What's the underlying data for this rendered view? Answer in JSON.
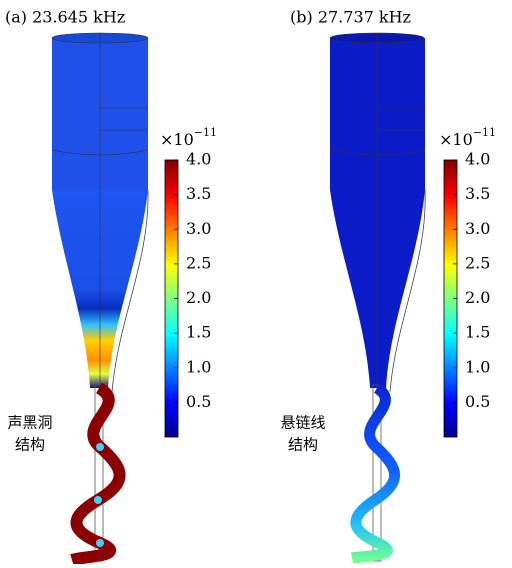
{
  "panels": [
    {
      "label": "(a) 23.645 kHz",
      "annotation": [
        "声黑洞",
        "结构"
      ],
      "colorbar": {
        "scale_base": "×10",
        "scale_exponent": "−11",
        "range": [
          0,
          4
        ],
        "ticks": [
          {
            "value": 4,
            "label": "4.0"
          },
          {
            "value": 3.5,
            "label": "3.5"
          },
          {
            "value": 3,
            "label": "3.0"
          },
          {
            "value": 2.5,
            "label": "2.5"
          },
          {
            "value": 2,
            "label": "2.0"
          },
          {
            "value": 1.5,
            "label": "1.5"
          },
          {
            "value": 1,
            "label": "1.0"
          },
          {
            "value": 0.5,
            "label": "0.5"
          }
        ]
      }
    },
    {
      "label": "(b) 27.737 kHz",
      "annotation": [
        "悬链线",
        "结构"
      ],
      "colorbar": {
        "scale_base": "×10",
        "scale_exponent": "−11",
        "range": [
          0,
          4
        ],
        "ticks": [
          {
            "value": 4,
            "label": "4.0"
          },
          {
            "value": 3.5,
            "label": "3.5"
          },
          {
            "value": 3,
            "label": "3.0"
          },
          {
            "value": 2.5,
            "label": "2.5"
          },
          {
            "value": 2,
            "label": "2.0"
          },
          {
            "value": 1.5,
            "label": "1.5"
          },
          {
            "value": 1,
            "label": "1.0"
          },
          {
            "value": 0.5,
            "label": "0.5"
          }
        ]
      }
    }
  ]
}
